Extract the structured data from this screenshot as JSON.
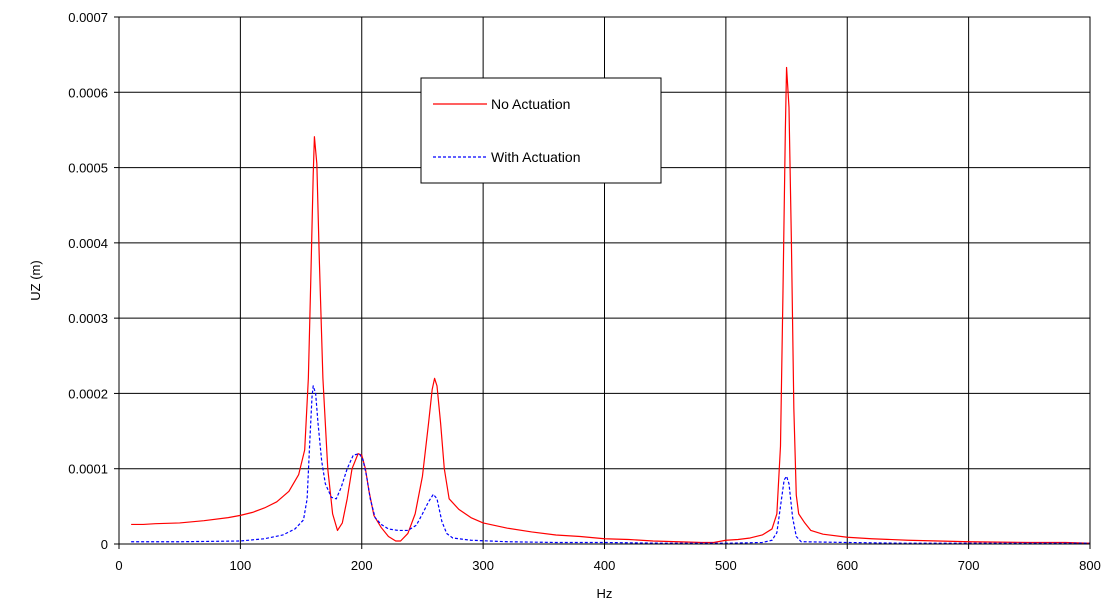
{
  "chart_data": {
    "type": "line",
    "title": "",
    "xlabel": "Hz",
    "ylabel": "UZ (m)",
    "xlim": [
      0,
      800
    ],
    "ylim": [
      0,
      0.0007
    ],
    "xticks": [
      0,
      100,
      200,
      300,
      400,
      500,
      600,
      700,
      800
    ],
    "yticks": [
      "0",
      "0.0001",
      "0.0002",
      "0.0003",
      "0.0004",
      "0.0005",
      "0.0006",
      "0.0007"
    ],
    "grid": true,
    "legend_position": "top-center",
    "series": [
      {
        "name": "No Actuation",
        "color": "#ff0000",
        "dash": "solid",
        "points": [
          [
            10,
            2.6e-05
          ],
          [
            20,
            2.6e-05
          ],
          [
            30,
            2.7e-05
          ],
          [
            50,
            2.8e-05
          ],
          [
            70,
            3.1e-05
          ],
          [
            90,
            3.5e-05
          ],
          [
            100,
            3.8e-05
          ],
          [
            110,
            4.2e-05
          ],
          [
            120,
            4.8e-05
          ],
          [
            130,
            5.6e-05
          ],
          [
            140,
            7e-05
          ],
          [
            148,
            9.2e-05
          ],
          [
            153,
            0.000125
          ],
          [
            156,
            0.00022
          ],
          [
            158,
            0.00035
          ],
          [
            160,
            0.00049
          ],
          [
            161,
            0.000541
          ],
          [
            163,
            0.000505
          ],
          [
            165,
            0.00038
          ],
          [
            168,
            0.00022
          ],
          [
            172,
            0.0001
          ],
          [
            176,
            4e-05
          ],
          [
            180,
            1.8e-05
          ],
          [
            184,
            2.8e-05
          ],
          [
            188,
            6e-05
          ],
          [
            192,
            0.0001
          ],
          [
            197,
            0.00012
          ],
          [
            200,
            0.000118
          ],
          [
            203,
            0.0001
          ],
          [
            206,
            7e-05
          ],
          [
            210,
            3.8e-05
          ],
          [
            216,
            2.2e-05
          ],
          [
            222,
            1e-05
          ],
          [
            228,
            4e-06
          ],
          [
            232,
            4e-06
          ],
          [
            238,
            1.4e-05
          ],
          [
            244,
            4e-05
          ],
          [
            250,
            9e-05
          ],
          [
            255,
            0.00016
          ],
          [
            258,
            0.000205
          ],
          [
            260,
            0.00022
          ],
          [
            262,
            0.00021
          ],
          [
            265,
            0.00016
          ],
          [
            268,
            0.0001
          ],
          [
            272,
            6e-05
          ],
          [
            280,
            4.6e-05
          ],
          [
            290,
            3.5e-05
          ],
          [
            300,
            2.8e-05
          ],
          [
            320,
            2.1e-05
          ],
          [
            340,
            1.6e-05
          ],
          [
            360,
            1.2e-05
          ],
          [
            380,
            1e-05
          ],
          [
            400,
            7e-06
          ],
          [
            420,
            6e-06
          ],
          [
            440,
            4e-06
          ],
          [
            460,
            3e-06
          ],
          [
            480,
            2e-06
          ],
          [
            490,
            2e-06
          ],
          [
            500,
            5e-06
          ],
          [
            510,
            6e-06
          ],
          [
            520,
            8e-06
          ],
          [
            530,
            1.2e-05
          ],
          [
            538,
            2e-05
          ],
          [
            542,
            4e-05
          ],
          [
            545,
            0.00013
          ],
          [
            547,
            0.00033
          ],
          [
            549,
            0.00055
          ],
          [
            550,
            0.000633
          ],
          [
            552,
            0.00058
          ],
          [
            554,
            0.0004
          ],
          [
            556,
            0.00018
          ],
          [
            558,
            6.5e-05
          ],
          [
            560,
            4e-05
          ],
          [
            565,
            2.8e-05
          ],
          [
            570,
            1.8e-05
          ],
          [
            580,
            1.3e-05
          ],
          [
            600,
            9e-06
          ],
          [
            620,
            7e-06
          ],
          [
            650,
            5e-06
          ],
          [
            700,
            3e-06
          ],
          [
            750,
            2e-06
          ],
          [
            780,
            2e-06
          ],
          [
            800,
            1e-06
          ]
        ]
      },
      {
        "name": "With Actuation",
        "color": "#0000ff",
        "dash": "dashed",
        "points": [
          [
            10,
            3e-06
          ],
          [
            50,
            3e-06
          ],
          [
            100,
            4e-06
          ],
          [
            120,
            7e-06
          ],
          [
            135,
            1.2e-05
          ],
          [
            145,
            2e-05
          ],
          [
            152,
            3.2e-05
          ],
          [
            155,
            6e-05
          ],
          [
            157,
            0.00013
          ],
          [
            159,
            0.000195
          ],
          [
            160,
            0.00021
          ],
          [
            162,
            0.0002
          ],
          [
            164,
            0.00016
          ],
          [
            167,
            0.00011
          ],
          [
            170,
            8e-05
          ],
          [
            175,
            6.2e-05
          ],
          [
            179,
            6e-05
          ],
          [
            183,
            7.5e-05
          ],
          [
            188,
            0.0001
          ],
          [
            193,
            0.000118
          ],
          [
            198,
            0.00012
          ],
          [
            201,
            0.000112
          ],
          [
            204,
            9e-05
          ],
          [
            207,
            6e-05
          ],
          [
            211,
            3.5e-05
          ],
          [
            216,
            2.6e-05
          ],
          [
            222,
            2e-05
          ],
          [
            230,
            1.8e-05
          ],
          [
            238,
            1.8e-05
          ],
          [
            245,
            2.5e-05
          ],
          [
            250,
            4e-05
          ],
          [
            255,
            5.6e-05
          ],
          [
            259,
            6.6e-05
          ],
          [
            262,
            6e-05
          ],
          [
            266,
            3e-05
          ],
          [
            270,
            1.4e-05
          ],
          [
            275,
            8e-06
          ],
          [
            290,
            5e-06
          ],
          [
            320,
            3e-06
          ],
          [
            360,
            2e-06
          ],
          [
            400,
            2e-06
          ],
          [
            450,
            1e-06
          ],
          [
            500,
            1e-06
          ],
          [
            530,
            2e-06
          ],
          [
            538,
            5e-06
          ],
          [
            542,
            1.5e-05
          ],
          [
            545,
            5e-05
          ],
          [
            548,
            8.5e-05
          ],
          [
            550,
            9e-05
          ],
          [
            552,
            8e-05
          ],
          [
            555,
            3.5e-05
          ],
          [
            558,
            1e-05
          ],
          [
            562,
            3e-06
          ],
          [
            600,
            2e-06
          ],
          [
            650,
            1e-06
          ],
          [
            700,
            1e-06
          ],
          [
            800,
            1e-06
          ]
        ]
      }
    ]
  }
}
